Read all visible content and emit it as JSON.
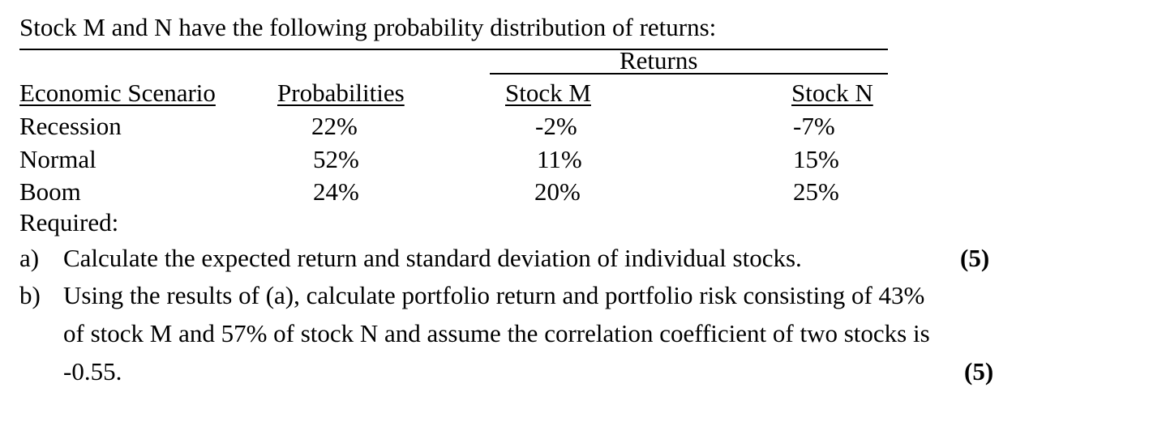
{
  "intro": "Stock M and N have the following probability distribution of returns:",
  "table": {
    "group_header": "Returns",
    "headers": [
      "Economic Scenario",
      "Probabilities",
      "Stock M",
      "Stock N"
    ],
    "rows": [
      [
        "Recession",
        "22%",
        "-2%",
        "-7%"
      ],
      [
        "Normal",
        "52%",
        "11%",
        "15%"
      ],
      [
        "Boom",
        "24%",
        "20%",
        "25%"
      ]
    ]
  },
  "required_label": "Required:",
  "questions": [
    {
      "marker": "a)",
      "lines": [
        "Calculate the expected return and standard deviation of individual stocks."
      ],
      "marks": "(5)"
    },
    {
      "marker": "b)",
      "lines": [
        "Using the results of (a), calculate portfolio return and portfolio risk consisting of 43%",
        "of stock M and 57% of stock N and assume the correlation coefficient of two stocks is",
        "-0.55."
      ],
      "marks": "(5)"
    }
  ]
}
